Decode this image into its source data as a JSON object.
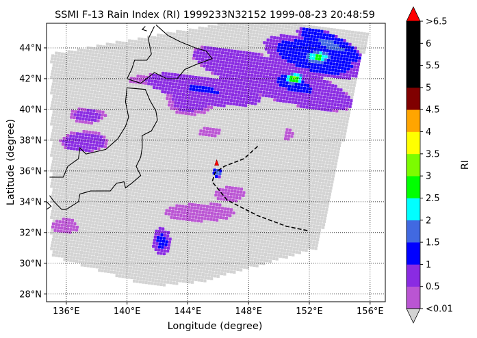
{
  "chart_data": {
    "type": "map-scatter",
    "title": "SSMI F-13 Rain Index (RI) 1999233N32152 1999-08-23 20:48:59",
    "xlabel": "Longitude (degree)",
    "ylabel": "Latitude (degree)",
    "xlim": [
      134.7,
      157.0
    ],
    "ylim": [
      27.5,
      45.6
    ],
    "x_ticks": [
      136,
      140,
      144,
      148,
      152,
      156
    ],
    "x_tick_labels": [
      "136°E",
      "140°E",
      "144°E",
      "148°E",
      "152°E",
      "156°E"
    ],
    "y_ticks": [
      28,
      30,
      32,
      34,
      36,
      38,
      40,
      42,
      44
    ],
    "y_tick_labels": [
      "28°N",
      "30°N",
      "32°N",
      "34°N",
      "36°N",
      "38°N",
      "40°N",
      "42°N",
      "44°N"
    ],
    "grid": true,
    "colorbar": {
      "label": "RI",
      "bounds": [
        0.01,
        0.5,
        1,
        1.5,
        2,
        2.5,
        3,
        3.5,
        4,
        4.5,
        5,
        6.5
      ],
      "tick_values": [
        0.5,
        1,
        1.5,
        2,
        2.5,
        3,
        3.5,
        4,
        4.5,
        5,
        5.5,
        6
      ],
      "tick_labels": [
        "0.5",
        "1",
        "1.5",
        "2",
        "2.5",
        "3",
        "3.5",
        "4",
        "4.5",
        "5",
        "5.5",
        "6"
      ],
      "under_label": "<0.01",
      "over_label": ">6.5",
      "colors": [
        "#ba55d3",
        "#8a2be2",
        "#0000ff",
        "#4169e1",
        "#00ffff",
        "#00ff00",
        "#7cfc00",
        "#ffff00",
        "#ffa500",
        "#800000",
        "#000000"
      ],
      "under_color": "#d3d3d3",
      "over_color": "#ff0000"
    },
    "swath": {
      "color": "#d3d3d3",
      "corners": [
        [
          135.0,
          43.6
        ],
        [
          149.6,
          46.2
        ],
        [
          155.9,
          45.0
        ],
        [
          152.6,
          31.0
        ],
        [
          145.0,
          28.8
        ],
        [
          141.5,
          28.5
        ],
        [
          135.0,
          30.5
        ]
      ]
    },
    "track": {
      "points": [
        [
          148.6,
          37.6
        ],
        [
          147.7,
          36.8
        ],
        [
          146.4,
          36.3
        ],
        [
          145.8,
          35.9
        ],
        [
          145.6,
          35.3
        ],
        [
          146.6,
          34.1
        ],
        [
          148.6,
          33.1
        ],
        [
          150.5,
          32.4
        ],
        [
          152.0,
          32.1
        ]
      ],
      "center": [
        145.9,
        36.5
      ]
    },
    "rain_patches": [
      {
        "lon": 152.3,
        "lat": 43.4,
        "rlon": 3.4,
        "rlat": 1.2,
        "angle": -15,
        "value": 1.2
      },
      {
        "lon": 149.6,
        "lat": 42.0,
        "rlon": 5.6,
        "rlat": 1.3,
        "angle": -18,
        "value": 0.8
      },
      {
        "lon": 145.0,
        "lat": 41.3,
        "rlon": 3.8,
        "rlat": 0.9,
        "angle": -10,
        "value": 0.9
      },
      {
        "lon": 144.2,
        "lat": 40.6,
        "rlon": 1.6,
        "rlat": 1.0,
        "angle": 0,
        "value": 0.6
      },
      {
        "lon": 153.4,
        "lat": 44.2,
        "rlon": 2.4,
        "rlat": 0.7,
        "angle": -25,
        "value": 1.4
      },
      {
        "lon": 151.0,
        "lat": 41.6,
        "rlon": 1.8,
        "rlat": 0.7,
        "angle": -20,
        "value": 1.1
      },
      {
        "lon": 152.6,
        "lat": 43.4,
        "rlon": 0.8,
        "rlat": 0.4,
        "angle": 0,
        "value": 2.3
      },
      {
        "lon": 151.0,
        "lat": 42.0,
        "rlon": 0.6,
        "rlat": 0.35,
        "angle": 0,
        "value": 2.7
      },
      {
        "lon": 141.8,
        "lat": 41.9,
        "rlon": 1.6,
        "rlat": 0.4,
        "angle": 0,
        "value": 0.3
      },
      {
        "lon": 147.2,
        "lat": 40.6,
        "rlon": 1.4,
        "rlat": 0.4,
        "angle": 0,
        "value": 0.3
      },
      {
        "lon": 137.4,
        "lat": 39.6,
        "rlon": 1.2,
        "rlat": 0.5,
        "angle": 0,
        "value": 0.6
      },
      {
        "lon": 137.2,
        "lat": 37.9,
        "rlon": 1.6,
        "rlat": 0.7,
        "angle": 0,
        "value": 0.7
      },
      {
        "lon": 135.9,
        "lat": 32.4,
        "rlon": 0.9,
        "rlat": 0.5,
        "angle": 0,
        "value": 0.3
      },
      {
        "lon": 142.3,
        "lat": 31.4,
        "rlon": 0.6,
        "rlat": 0.9,
        "angle": 0,
        "value": 1.0
      },
      {
        "lon": 144.8,
        "lat": 33.3,
        "rlon": 2.3,
        "rlat": 0.6,
        "angle": 0,
        "value": 0.3
      },
      {
        "lon": 146.8,
        "lat": 34.5,
        "rlon": 1.0,
        "rlat": 0.5,
        "angle": 0,
        "value": 0.4
      },
      {
        "lon": 146.0,
        "lat": 35.9,
        "rlon": 0.3,
        "rlat": 0.3,
        "angle": 0,
        "value": 1.6
      },
      {
        "lon": 145.4,
        "lat": 38.5,
        "rlon": 0.8,
        "rlat": 0.3,
        "angle": 0,
        "value": 0.3
      },
      {
        "lon": 150.6,
        "lat": 38.4,
        "rlon": 0.3,
        "rlat": 0.4,
        "angle": 0,
        "value": 0.3
      }
    ],
    "coastlines": [
      [
        [
          141.8,
          45.4
        ],
        [
          141.4,
          44.6
        ],
        [
          141.6,
          43.6
        ],
        [
          141.3,
          43.2
        ],
        [
          140.5,
          43.2
        ],
        [
          140.3,
          42.6
        ],
        [
          140.0,
          42.0
        ],
        [
          140.9,
          41.7
        ],
        [
          141.8,
          42.4
        ],
        [
          142.6,
          42.0
        ],
        [
          143.3,
          42.0
        ],
        [
          143.8,
          42.6
        ],
        [
          144.5,
          42.9
        ],
        [
          145.6,
          43.3
        ],
        [
          145.2,
          43.8
        ],
        [
          144.5,
          44.0
        ],
        [
          143.5,
          44.4
        ],
        [
          142.7,
          44.8
        ],
        [
          141.9,
          45.5
        ]
      ],
      [
        [
          140.0,
          41.4
        ],
        [
          139.9,
          40.5
        ],
        [
          140.1,
          39.5
        ],
        [
          139.9,
          38.9
        ],
        [
          139.4,
          38.1
        ],
        [
          138.6,
          37.4
        ],
        [
          137.3,
          37.1
        ],
        [
          136.9,
          37.5
        ],
        [
          136.8,
          36.8
        ],
        [
          136.1,
          36.3
        ],
        [
          135.8,
          35.6
        ],
        [
          134.9,
          35.6
        ]
      ],
      [
        [
          140.0,
          41.4
        ],
        [
          141.2,
          41.3
        ],
        [
          141.5,
          40.6
        ],
        [
          141.9,
          39.9
        ],
        [
          142.0,
          39.3
        ],
        [
          141.6,
          38.6
        ],
        [
          141.0,
          38.3
        ],
        [
          141.0,
          37.5
        ],
        [
          140.9,
          36.9
        ],
        [
          140.6,
          36.3
        ],
        [
          140.9,
          35.7
        ],
        [
          140.3,
          35.2
        ],
        [
          139.9,
          34.9
        ],
        [
          139.8,
          35.3
        ],
        [
          139.3,
          35.2
        ],
        [
          138.9,
          34.7
        ],
        [
          138.5,
          34.7
        ],
        [
          137.6,
          34.7
        ],
        [
          136.9,
          34.5
        ],
        [
          136.8,
          34.0
        ],
        [
          136.0,
          33.5
        ],
        [
          135.7,
          33.5
        ],
        [
          135.2,
          34.0
        ],
        [
          134.9,
          34.4
        ]
      ],
      [
        [
          134.7,
          34.0
        ],
        [
          135.0,
          33.7
        ],
        [
          134.7,
          33.5
        ]
      ],
      [
        [
          141.2,
          45.4
        ],
        [
          141.0,
          45.2
        ],
        [
          141.3,
          45.1
        ]
      ]
    ]
  }
}
